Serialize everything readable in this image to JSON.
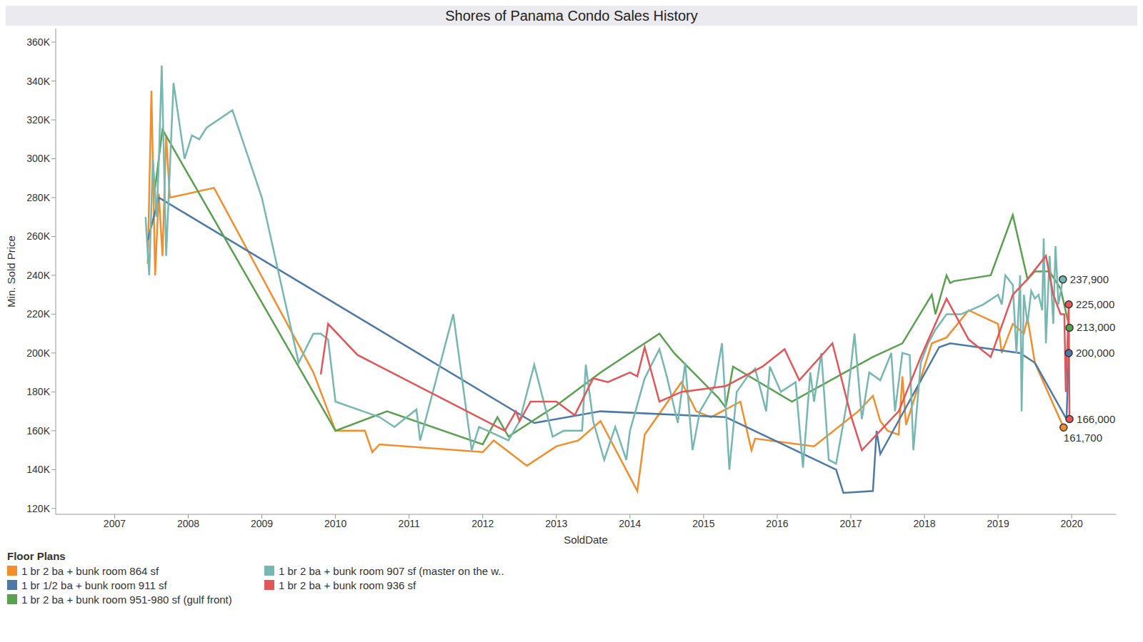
{
  "chart_data": {
    "type": "line",
    "title": "Shores of Panama Condo Sales History",
    "x_label": "SoldDate",
    "y_label": "Min. Sold Price",
    "legend_title": "Floor Plans",
    "grid": false,
    "legend": "bottom",
    "xlim": [
      2006.2,
      2020.6
    ],
    "xticks": [
      2007,
      2008,
      2009,
      2010,
      2011,
      2012,
      2013,
      2014,
      2015,
      2016,
      2017,
      2018,
      2019,
      2020
    ],
    "ylim": [
      117000,
      367000
    ],
    "yticks": [
      {
        "value": 120000,
        "label": "120K"
      },
      {
        "value": 140000,
        "label": "140K"
      },
      {
        "value": 160000,
        "label": "160K"
      },
      {
        "value": 180000,
        "label": "180K"
      },
      {
        "value": 200000,
        "label": "200K"
      },
      {
        "value": 220000,
        "label": "220K"
      },
      {
        "value": 240000,
        "label": "240K"
      },
      {
        "value": 260000,
        "label": "260K"
      },
      {
        "value": 280000,
        "label": "280K"
      },
      {
        "value": 300000,
        "label": "300K"
      },
      {
        "value": 320000,
        "label": "320K"
      },
      {
        "value": 340000,
        "label": "340K"
      },
      {
        "value": 360000,
        "label": "360K"
      }
    ],
    "series": [
      {
        "name": "1 br 2 ba + bunk room 864 sf",
        "color": "#f28e2b",
        "x": [
          2007.45,
          2007.5,
          2007.55,
          2007.6,
          2007.65,
          2007.7,
          2007.75,
          2008.35,
          2009.7,
          2010.0,
          2010.4,
          2010.5,
          2010.6,
          2012.0,
          2012.15,
          2012.6,
          2013.0,
          2013.3,
          2013.6,
          2014.1,
          2014.2,
          2014.7,
          2014.9,
          2015.1,
          2015.5,
          2015.65,
          2015.7,
          2016.5,
          2017.1,
          2017.3,
          2017.4,
          2017.5,
          2017.65,
          2017.7,
          2017.75,
          2018.1,
          2018.3,
          2018.6,
          2019.0,
          2019.05,
          2019.2,
          2019.35,
          2019.4,
          2019.5,
          2019.89
        ],
        "values": [
          246000,
          335000,
          240000,
          282000,
          250000,
          312000,
          280000,
          285000,
          190000,
          160000,
          160000,
          149000,
          153000,
          149000,
          155000,
          142000,
          152000,
          155000,
          165000,
          129000,
          158000,
          185000,
          170000,
          167000,
          175000,
          150000,
          156000,
          152000,
          170000,
          178000,
          165000,
          160000,
          158000,
          188000,
          163000,
          205000,
          208000,
          222000,
          215000,
          200000,
          215000,
          210000,
          218000,
          195000,
          161700
        ]
      },
      {
        "name": "1 br 1/2 ba + bunk room 911 sf",
        "color": "#4e79a7",
        "x": [
          2007.45,
          2007.6,
          2012.7,
          2013.6,
          2015.3,
          2016.8,
          2016.9,
          2017.3,
          2017.35,
          2017.4,
          2018.2,
          2018.35,
          2019.3,
          2019.5,
          2019.93,
          2019.96
        ],
        "values": [
          258000,
          280000,
          164000,
          170000,
          167000,
          140000,
          128000,
          129000,
          160000,
          148000,
          203000,
          205000,
          200000,
          195000,
          166000,
          200000
        ]
      },
      {
        "name": "1 br 2 ba + bunk room 951-980 sf (gulf front)",
        "color": "#59a14f",
        "x": [
          2007.55,
          2007.65,
          2010.0,
          2010.7,
          2012.0,
          2012.2,
          2012.35,
          2013.0,
          2013.6,
          2013.8,
          2014.4,
          2014.6,
          2015.2,
          2015.3,
          2015.4,
          2016.2,
          2017.3,
          2017.7,
          2018.1,
          2018.15,
          2018.3,
          2018.35,
          2018.4,
          2018.9,
          2019.2,
          2019.4,
          2019.5,
          2019.7,
          2019.85,
          2019.97
        ],
        "values": [
          285000,
          315000,
          160000,
          170000,
          153000,
          167000,
          157000,
          173000,
          190000,
          195000,
          210000,
          200000,
          177000,
          172000,
          193000,
          175000,
          198000,
          205000,
          230000,
          220000,
          240000,
          236000,
          237000,
          240000,
          271000,
          238000,
          242000,
          242000,
          233000,
          213000
        ]
      },
      {
        "name": "1 br 2 ba + bunk room 907 sf (master on the w..",
        "color": "#76b7b2",
        "x": [
          2007.42,
          2007.47,
          2007.52,
          2007.57,
          2007.6,
          2007.64,
          2007.7,
          2007.8,
          2007.95,
          2008.05,
          2008.15,
          2008.25,
          2008.6,
          2009.0,
          2009.3,
          2009.5,
          2009.7,
          2009.8,
          2009.9,
          2010.0,
          2010.6,
          2010.8,
          2011.1,
          2011.15,
          2011.6,
          2011.85,
          2011.95,
          2012.35,
          2012.5,
          2012.7,
          2012.95,
          2013.1,
          2013.35,
          2013.4,
          2013.5,
          2013.65,
          2013.8,
          2013.95,
          2014.0,
          2014.2,
          2014.4,
          2014.5,
          2014.65,
          2014.75,
          2014.85,
          2014.95,
          2015.15,
          2015.25,
          2015.35,
          2015.45,
          2015.6,
          2015.7,
          2015.85,
          2015.9,
          2016.05,
          2016.25,
          2016.35,
          2016.45,
          2016.5,
          2016.6,
          2016.7,
          2016.8,
          2016.95,
          2017.05,
          2017.15,
          2017.25,
          2017.4,
          2017.55,
          2017.6,
          2017.7,
          2017.8,
          2017.85,
          2017.95,
          2018.05,
          2018.15,
          2018.3,
          2018.5,
          2018.8,
          2019.0,
          2019.05,
          2019.1,
          2019.2,
          2019.25,
          2019.3,
          2019.32,
          2019.35,
          2019.4,
          2019.45,
          2019.5,
          2019.55,
          2019.6,
          2019.62,
          2019.65,
          2019.7,
          2019.75,
          2019.78,
          2019.82,
          2019.88
        ],
        "values": [
          270000,
          240000,
          300000,
          270000,
          298000,
          348000,
          250000,
          339000,
          300000,
          312000,
          310000,
          316000,
          325000,
          280000,
          229000,
          195000,
          210000,
          210000,
          207000,
          175000,
          167000,
          162000,
          171000,
          155000,
          220000,
          150000,
          162000,
          155000,
          165000,
          194000,
          157000,
          160000,
          160000,
          194000,
          165000,
          145000,
          162000,
          145000,
          160000,
          187000,
          202000,
          188000,
          164000,
          195000,
          150000,
          170000,
          183000,
          205000,
          140000,
          180000,
          188000,
          192000,
          170000,
          193000,
          180000,
          185000,
          141000,
          190000,
          175000,
          200000,
          145000,
          143000,
          175000,
          210000,
          166000,
          190000,
          186000,
          200000,
          170000,
          200000,
          199000,
          150000,
          195000,
          205000,
          212000,
          220000,
          220000,
          225000,
          230000,
          225000,
          240000,
          235000,
          200000,
          240000,
          170000,
          230000,
          215000,
          232000,
          228000,
          230000,
          222000,
          259000,
          205000,
          250000,
          215000,
          255000,
          225000,
          237900
        ]
      },
      {
        "name": "1 br 2 ba + bunk room 936 sf",
        "color": "#e15759",
        "x": [
          2009.8,
          2009.9,
          2010.3,
          2012.3,
          2012.45,
          2012.5,
          2012.65,
          2013.0,
          2013.25,
          2013.5,
          2013.7,
          2014.0,
          2014.1,
          2014.2,
          2014.4,
          2014.7,
          2015.3,
          2015.8,
          2016.1,
          2016.3,
          2016.75,
          2017.0,
          2017.15,
          2017.65,
          2017.95,
          2018.3,
          2018.6,
          2018.9,
          2019.2,
          2019.4,
          2019.65,
          2019.75,
          2019.85,
          2019.9,
          2019.92,
          2019.96,
          2019.97
        ],
        "values": [
          189000,
          215000,
          199000,
          160000,
          170000,
          165000,
          175000,
          175000,
          168000,
          187000,
          185000,
          190000,
          188000,
          203000,
          175000,
          180000,
          183000,
          193000,
          202000,
          186000,
          205000,
          168000,
          150000,
          170000,
          198000,
          228000,
          207000,
          198000,
          230000,
          238000,
          250000,
          230000,
          220000,
          220000,
          180000,
          225000,
          166000
        ]
      }
    ],
    "annotations": [
      {
        "x": 2019.88,
        "y": 237900,
        "label": "237,900",
        "color": "#76b7b2"
      },
      {
        "x": 2019.96,
        "y": 225000,
        "label": "225,000",
        "color": "#e15759"
      },
      {
        "x": 2019.97,
        "y": 213000,
        "label": "213,000",
        "color": "#59a14f"
      },
      {
        "x": 2019.96,
        "y": 200000,
        "label": "200,000",
        "color": "#4e79a7"
      },
      {
        "x": 2019.97,
        "y": 166000,
        "label": "166,000",
        "color": "#e15759"
      },
      {
        "x": 2019.89,
        "y": 161700,
        "label": "161,700",
        "color": "#f28e2b"
      }
    ]
  }
}
